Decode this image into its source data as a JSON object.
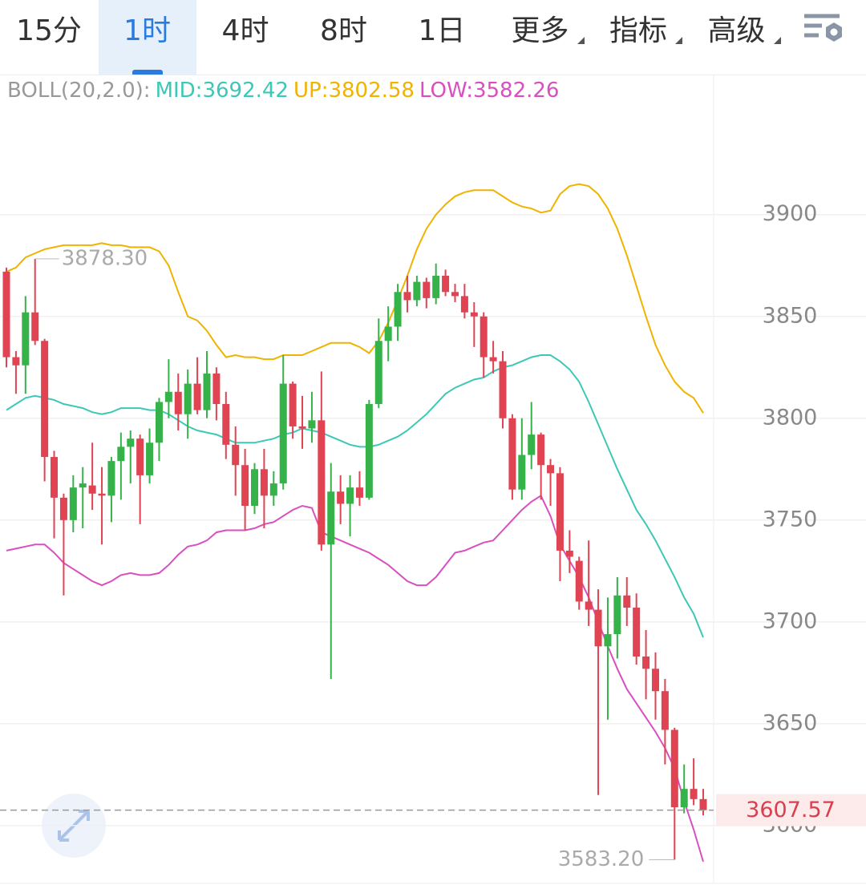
{
  "tabs": [
    "15分",
    "1时",
    "4时",
    "8时",
    "1日",
    "更多",
    "指标",
    "高级"
  ],
  "active_tab": 1,
  "menu_tabs": [
    5,
    6,
    7
  ],
  "chart_data": {
    "type": "candlestick",
    "indicator": "BOLL(20,2.0):",
    "ohlc": [
      [
        3872,
        3874,
        3825,
        3830
      ],
      [
        3830,
        3833,
        3812,
        3826
      ],
      [
        3826,
        3860,
        3812,
        3852
      ],
      [
        3852,
        3878.3,
        3836,
        3838
      ],
      [
        3838,
        3839,
        3769,
        3781
      ],
      [
        3781,
        3784,
        3741,
        3761
      ],
      [
        3761,
        3763,
        3713,
        3750
      ],
      [
        3750,
        3772,
        3744,
        3766
      ],
      [
        3766,
        3776,
        3746,
        3768
      ],
      [
        3767,
        3788,
        3755,
        3763
      ],
      [
        3763,
        3776,
        3738,
        3762
      ],
      [
        3762,
        3781,
        3749,
        3779
      ],
      [
        3779,
        3793,
        3760,
        3786
      ],
      [
        3786,
        3794,
        3768,
        3790
      ],
      [
        3790,
        3792,
        3748,
        3772
      ],
      [
        3772,
        3795,
        3768,
        3788
      ],
      [
        3788,
        3810,
        3779,
        3808
      ],
      [
        3808,
        3829,
        3800,
        3813
      ],
      [
        3813,
        3822,
        3794,
        3802
      ],
      [
        3802,
        3824,
        3790,
        3817
      ],
      [
        3817,
        3830,
        3802,
        3804
      ],
      [
        3804,
        3833,
        3800,
        3822
      ],
      [
        3822,
        3825,
        3799,
        3807
      ],
      [
        3807,
        3813,
        3780,
        3787
      ],
      [
        3787,
        3796,
        3762,
        3777
      ],
      [
        3777,
        3785,
        3745,
        3757
      ],
      [
        3757,
        3778,
        3753,
        3775
      ],
      [
        3775,
        3785,
        3746,
        3762
      ],
      [
        3762,
        3774,
        3757,
        3768
      ],
      [
        3768,
        3831,
        3765,
        3817
      ],
      [
        3817,
        3818,
        3790,
        3796
      ],
      [
        3796,
        3811,
        3785,
        3795
      ],
      [
        3795,
        3813,
        3788,
        3799
      ],
      [
        3799,
        3823,
        3735,
        3738
      ],
      [
        3738,
        3778,
        3672,
        3764
      ],
      [
        3764,
        3772,
        3748,
        3758
      ],
      [
        3758,
        3772,
        3742,
        3766
      ],
      [
        3766,
        3774,
        3757,
        3761
      ],
      [
        3761,
        3809,
        3760,
        3807
      ],
      [
        3807,
        3849,
        3805,
        3838
      ],
      [
        3838,
        3855,
        3828,
        3845
      ],
      [
        3845,
        3866,
        3838,
        3862
      ],
      [
        3862,
        3870,
        3852,
        3858
      ],
      [
        3858,
        3870,
        3855,
        3867
      ],
      [
        3867,
        3869,
        3854,
        3859
      ],
      [
        3859,
        3876,
        3856,
        3870
      ],
      [
        3870,
        3873,
        3860,
        3862
      ],
      [
        3862,
        3866,
        3857,
        3860
      ],
      [
        3860,
        3866,
        3849,
        3852
      ],
      [
        3852,
        3857,
        3835,
        3850
      ],
      [
        3850,
        3852,
        3820,
        3830
      ],
      [
        3830,
        3838,
        3822,
        3828
      ],
      [
        3828,
        3833,
        3795,
        3800
      ],
      [
        3800,
        3802,
        3760,
        3765
      ],
      [
        3765,
        3800,
        3760,
        3782
      ],
      [
        3782,
        3808,
        3775,
        3792
      ],
      [
        3792,
        3793,
        3760,
        3777
      ],
      [
        3777,
        3780,
        3757,
        3773
      ],
      [
        3773,
        3776,
        3720,
        3735
      ],
      [
        3735,
        3745,
        3724,
        3732
      ],
      [
        3730,
        3732,
        3706,
        3710
      ],
      [
        3710,
        3740,
        3698,
        3706
      ],
      [
        3706,
        3716,
        3615,
        3688
      ],
      [
        3688,
        3712,
        3652,
        3694
      ],
      [
        3694,
        3722,
        3682,
        3713
      ],
      [
        3713,
        3722,
        3698,
        3707
      ],
      [
        3707,
        3714,
        3679,
        3683
      ],
      [
        3683,
        3696,
        3662,
        3677
      ],
      [
        3677,
        3685,
        3652,
        3666
      ],
      [
        3666,
        3672,
        3630,
        3647
      ],
      [
        3647,
        3648,
        3583.2,
        3609
      ],
      [
        3609,
        3630,
        3606,
        3618
      ],
      [
        3618,
        3633,
        3610,
        3613
      ],
      [
        3613,
        3618,
        3605,
        3607.57
      ]
    ],
    "up_color": "#35b24a",
    "down_color": "#e04352",
    "series": [
      {
        "name": "MID:",
        "color": "#3cc8b6",
        "values": [
          3804,
          3807,
          3810,
          3811,
          3810,
          3809,
          3807,
          3806,
          3805,
          3803,
          3802,
          3803,
          3805,
          3805,
          3805,
          3804,
          3804,
          3802,
          3799,
          3796,
          3794,
          3793,
          3792,
          3790,
          3788,
          3788,
          3788,
          3789,
          3790,
          3792,
          3793,
          3795,
          3794,
          3793,
          3791,
          3789,
          3787,
          3786,
          3786,
          3787,
          3789,
          3791,
          3794,
          3798,
          3802,
          3807,
          3812,
          3815,
          3817,
          3819,
          3820,
          3823,
          3825,
          3826,
          3828,
          3830,
          3831,
          3831,
          3828,
          3824,
          3818,
          3808,
          3797,
          3786,
          3775,
          3765,
          3755,
          3748,
          3740,
          3731,
          3722,
          3712,
          3704,
          3692.42
        ]
      },
      {
        "name": "UP:",
        "color": "#efb300",
        "values": [
          3872,
          3874,
          3879,
          3881,
          3883,
          3884,
          3885,
          3885,
          3885,
          3885,
          3886,
          3885,
          3885,
          3884,
          3884,
          3884,
          3882,
          3875,
          3862,
          3850,
          3848,
          3843,
          3836,
          3830,
          3831,
          3830,
          3830,
          3829,
          3829,
          3831,
          3831,
          3831,
          3833,
          3835,
          3837,
          3837,
          3837,
          3835,
          3832,
          3838,
          3847,
          3858,
          3870,
          3883,
          3893,
          3900,
          3905,
          3909,
          3911,
          3912,
          3912,
          3912,
          3909,
          3906,
          3904,
          3903,
          3901,
          3902,
          3910,
          3914,
          3915,
          3914,
          3910,
          3903,
          3893,
          3880,
          3865,
          3850,
          3836,
          3826,
          3818,
          3813,
          3810,
          3802.58
        ]
      },
      {
        "name": "LOW:",
        "color": "#d94fbf",
        "values": [
          3735,
          3736,
          3737,
          3738,
          3738,
          3734,
          3729,
          3726,
          3723,
          3720,
          3718,
          3720,
          3723,
          3724,
          3723,
          3723,
          3724,
          3728,
          3733,
          3737,
          3738,
          3740,
          3744,
          3745,
          3745,
          3745,
          3746,
          3748,
          3749,
          3752,
          3755,
          3757,
          3756,
          3744,
          3742,
          3740,
          3738,
          3736,
          3734,
          3731,
          3728,
          3724,
          3720,
          3718,
          3718,
          3722,
          3728,
          3734,
          3735,
          3737,
          3739,
          3740,
          3745,
          3750,
          3755,
          3759,
          3762,
          3752,
          3738,
          3730,
          3722,
          3712,
          3700,
          3688,
          3677,
          3667,
          3660,
          3653,
          3646,
          3638,
          3628,
          3612,
          3598,
          3582.26
        ]
      }
    ],
    "ylim": [
      3572,
      3968
    ],
    "yticks": [
      3600,
      3650,
      3700,
      3750,
      3800,
      3850,
      3900
    ],
    "grid": true,
    "last_price": 3607.57,
    "annotations": [
      {
        "value": 3878.3,
        "label": "3878.30"
      },
      {
        "value": 3583.2,
        "label": "3583.20"
      }
    ]
  }
}
